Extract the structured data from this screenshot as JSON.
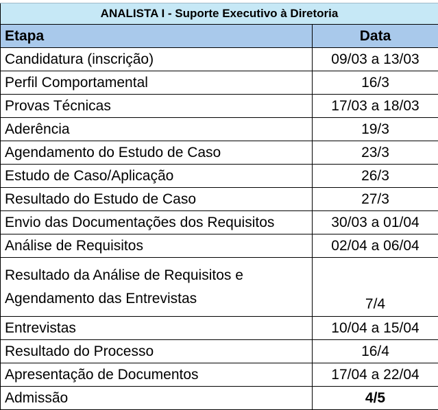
{
  "title": "ANALISTA I -  Suporte Executivo à Diretoria",
  "headers": {
    "etapa": "Etapa",
    "data": "Data"
  },
  "rows": [
    {
      "etapa": "Candidatura (inscrição)",
      "data": "09/03 a 13/03"
    },
    {
      "etapa": "Perfil Comportamental",
      "data": "16/3"
    },
    {
      "etapa": "Provas Técnicas",
      "data": "17/03 a 18/03"
    },
    {
      "etapa": "Aderência",
      "data": "19/3"
    },
    {
      "etapa": "Agendamento do Estudo de Caso",
      "data": "23/3"
    },
    {
      "etapa": "Estudo de Caso/Aplicação",
      "data": "26/3"
    },
    {
      "etapa": "Resultado do Estudo de Caso",
      "data": "27/3"
    },
    {
      "etapa": "Envio das Documentações dos Requisitos",
      "data": "30/03 a 01/04"
    },
    {
      "etapa": "Análise de Requisitos",
      "data": "02/04 a 06/04"
    },
    {
      "etapa_line1": "Resultado da Análise de Requisitos e",
      "etapa_line2": "Agendamento das Entrevistas",
      "data": "7/4"
    },
    {
      "etapa": "Entrevistas",
      "data": "10/04 a 15/04"
    },
    {
      "etapa": "Resultado do Processo",
      "data": "16/4"
    },
    {
      "etapa": "Apresentação de Documentos",
      "data": "17/04 a 22/04"
    },
    {
      "etapa": "Admissão",
      "data": "4/5"
    }
  ]
}
